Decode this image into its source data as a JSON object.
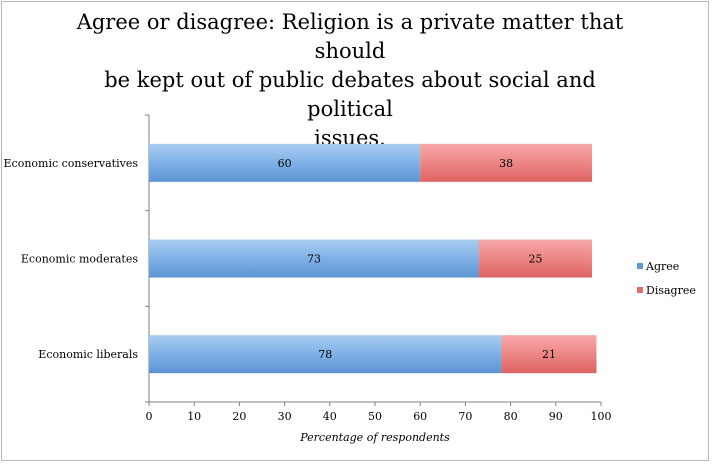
{
  "chart_data": {
    "type": "bar",
    "orientation": "horizontal",
    "stacked": true,
    "title": "Agree or disagree: Religion is a private matter that should be kept out of public debates about social and political issues.",
    "title_lines": [
      "Agree or disagree: Religion is a private matter that should",
      "be kept out of public debates about social and political",
      "issues."
    ],
    "categories": [
      "Economic conservatives",
      "Economic moderates",
      "Economic liberals"
    ],
    "series": [
      {
        "name": "Agree",
        "values": [
          60,
          73,
          78
        ],
        "color": "#5b9bd5"
      },
      {
        "name": "Disagree",
        "values": [
          38,
          25,
          21
        ],
        "color": "#e36b6b"
      }
    ],
    "xlabel": "Percentage of respondents",
    "ylabel": "",
    "xlim": [
      0,
      100
    ],
    "xticks": [
      "0",
      "10",
      "20",
      "30",
      "40",
      "50",
      "60",
      "70",
      "80",
      "90",
      "100"
    ],
    "grid": false,
    "legend_position": "right"
  }
}
